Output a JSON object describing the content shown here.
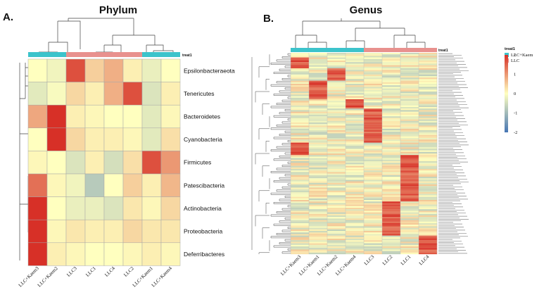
{
  "panels": {
    "a": {
      "letter": "A.",
      "title": "Phylum"
    },
    "b": {
      "letter": "B.",
      "title": "Genus"
    }
  },
  "chart_data": [
    {
      "type": "heatmap",
      "title": "Phylum",
      "annotation_label": "treat1",
      "columns": [
        "LLC+Kaem3",
        "LLC+Kaem2",
        "LLC3",
        "LLC1",
        "LLC4",
        "LLC2",
        "LLC+Kaem1",
        "LLC+Kaem4"
      ],
      "column_groups": [
        "LLC+Kaem",
        "LLC+Kaem",
        "LLC",
        "LLC",
        "LLC",
        "LLC",
        "LLC+Kaem",
        "LLC+Kaem"
      ],
      "rows": [
        "Epsilonbacteraeota",
        "Tenericutes",
        "Bacteroidetes",
        "Cyanobacteria",
        "Firmicutes",
        "Patescibacteria",
        "Actinobacteria",
        "Proteobacteria",
        "Deferribacteres"
      ],
      "values": [
        [
          0.0,
          -0.2,
          2.2,
          0.6,
          1.0,
          0.2,
          -0.3,
          0.0
        ],
        [
          -0.4,
          -0.1,
          0.5,
          0.2,
          1.0,
          2.2,
          -0.5,
          0.2
        ],
        [
          1.1,
          2.6,
          0.2,
          0.1,
          0.0,
          0.0,
          -0.4,
          0.1
        ],
        [
          0.0,
          2.6,
          0.5,
          0.2,
          0.2,
          0.1,
          -0.4,
          0.4
        ],
        [
          0.1,
          0.0,
          -0.5,
          0.2,
          -0.6,
          0.4,
          2.2,
          1.3
        ],
        [
          1.8,
          0.1,
          -0.2,
          -1.0,
          0.0,
          0.6,
          0.2,
          0.9
        ],
        [
          2.6,
          0.0,
          -0.3,
          -0.3,
          -0.5,
          0.3,
          0.1,
          0.5
        ],
        [
          2.6,
          0.1,
          0.3,
          0.2,
          0.2,
          0.5,
          0.3,
          0.3
        ],
        [
          2.6,
          0.2,
          0.1,
          0.0,
          0.0,
          0.1,
          0.2,
          0.1
        ]
      ]
    },
    {
      "type": "heatmap",
      "title": "Genus",
      "annotation_label": "treat1",
      "columns": [
        "LLC+Kaem3",
        "LLC+Kaem1",
        "LLC+Kaem2",
        "LLC+Kaem4",
        "LLC3",
        "LLC2",
        "LLC1",
        "LLC4"
      ],
      "column_groups": [
        "LLC+Kaem",
        "LLC+Kaem",
        "LLC+Kaem",
        "LLC+Kaem",
        "LLC",
        "LLC",
        "LLC",
        "LLC"
      ],
      "row_count": 130,
      "legend": {
        "title": "treat1",
        "entries": [
          {
            "label": "LLC+Kaem",
            "color": "#3cc3cb"
          },
          {
            "label": "LLC",
            "color": "#e8918e"
          }
        ],
        "scale_ticks": [
          "2",
          "1",
          "0",
          "-1",
          "-2"
        ]
      },
      "colors": {
        "low": "#4575b4",
        "mid": "#ffffbf",
        "high": "#d73027"
      }
    }
  ]
}
